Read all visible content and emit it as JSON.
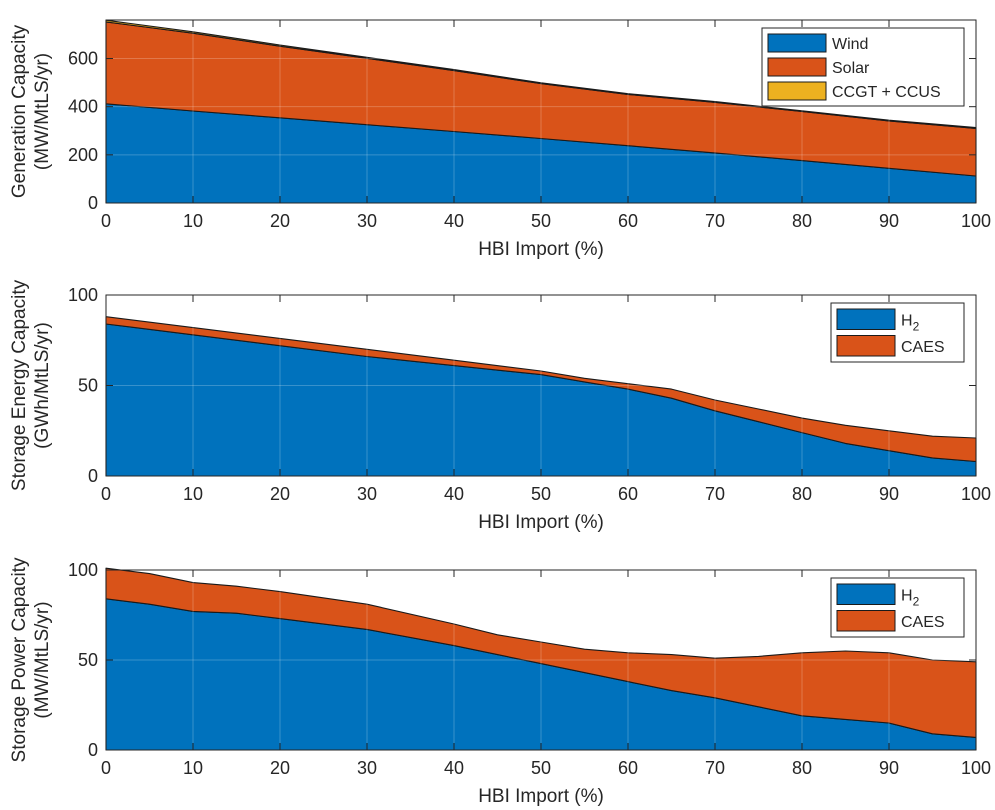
{
  "chart_data": [
    {
      "type": "area",
      "stacked": true,
      "xlabel": "HBI Import (%)",
      "ylabel": [
        "Generation Capacity",
        "(MW/MtLS/yr)"
      ],
      "xlim": [
        0,
        100
      ],
      "ylim": [
        0,
        760
      ],
      "xticks": [
        0,
        10,
        20,
        30,
        40,
        50,
        60,
        70,
        80,
        90,
        100
      ],
      "yticks": [
        0,
        200,
        400,
        600
      ],
      "grid": true,
      "legend_position": "top-right",
      "x": [
        0,
        10,
        20,
        30,
        40,
        50,
        60,
        70,
        80,
        90,
        100
      ],
      "series": [
        {
          "name": "Wind",
          "color": "#0072BD",
          "values": [
            412,
            382,
            354,
            325,
            297,
            268,
            238,
            208,
            176,
            144,
            112
          ]
        },
        {
          "name": "Solar",
          "color": "#D95319",
          "values": [
            340,
            323,
            297,
            276,
            253,
            228,
            213,
            210,
            204,
            197,
            198
          ]
        },
        {
          "name": "CCGT + CCUS",
          "color": "#EDB120",
          "values": [
            7,
            6,
            5,
            4,
            4,
            3,
            3,
            3,
            3,
            3,
            3
          ]
        }
      ]
    },
    {
      "type": "area",
      "stacked": true,
      "xlabel": "HBI Import (%)",
      "ylabel": [
        "Storage Energy Capacity",
        "(GWh/MtLS/yr)"
      ],
      "xlim": [
        0,
        100
      ],
      "ylim": [
        0,
        100
      ],
      "xticks": [
        0,
        10,
        20,
        30,
        40,
        50,
        60,
        70,
        80,
        90,
        100
      ],
      "yticks": [
        0,
        50,
        100
      ],
      "grid": true,
      "legend_position": "top-right",
      "x": [
        0,
        10,
        20,
        30,
        40,
        50,
        55,
        60,
        65,
        70,
        75,
        80,
        85,
        90,
        95,
        100
      ],
      "series": [
        {
          "name": "H",
          "subscript": "2",
          "color": "#0072BD",
          "values": [
            84,
            78,
            72,
            66,
            61,
            56,
            52,
            48,
            43,
            36,
            30,
            24,
            18,
            14,
            10,
            8
          ]
        },
        {
          "name": "CAES",
          "color": "#D95319",
          "values": [
            4,
            4,
            4,
            4,
            3,
            2,
            2,
            3,
            5,
            6,
            7,
            8,
            10,
            11,
            12,
            13
          ]
        }
      ]
    },
    {
      "type": "area",
      "stacked": true,
      "xlabel": "HBI Import (%)",
      "ylabel": [
        "Storage Power Capacity",
        "(MW/MtLS/yr)"
      ],
      "xlim": [
        0,
        100
      ],
      "ylim": [
        0,
        100
      ],
      "xticks": [
        0,
        10,
        20,
        30,
        40,
        50,
        60,
        70,
        80,
        90,
        100
      ],
      "yticks": [
        0,
        50,
        100
      ],
      "grid": true,
      "legend_position": "top-right",
      "x": [
        0,
        5,
        10,
        15,
        20,
        30,
        40,
        45,
        50,
        55,
        60,
        65,
        70,
        75,
        80,
        85,
        90,
        95,
        100
      ],
      "series": [
        {
          "name": "H",
          "subscript": "2",
          "color": "#0072BD",
          "values": [
            84,
            81,
            77,
            76,
            73,
            67,
            58,
            53,
            48,
            43,
            38,
            33,
            29,
            24,
            19,
            17,
            15,
            9,
            7
          ]
        },
        {
          "name": "CAES",
          "color": "#D95319",
          "values": [
            17,
            17,
            16,
            15,
            15,
            14,
            12,
            11,
            12,
            13,
            16,
            20,
            22,
            28,
            35,
            38,
            39,
            41,
            42
          ]
        }
      ]
    }
  ]
}
